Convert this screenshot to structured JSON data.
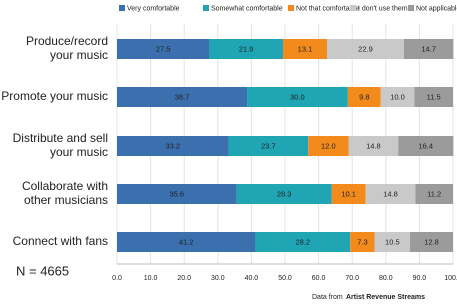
{
  "chart_data": {
    "type": "stacked-bar-horizontal",
    "categories": [
      [
        "Produce/record",
        "your music"
      ],
      [
        "Promote your music"
      ],
      [
        "Distribute and sell",
        "your music"
      ],
      [
        "Collaborate with",
        "other musicians"
      ],
      [
        "Connect with fans"
      ]
    ],
    "series": [
      {
        "name": "Very comfortable",
        "color": "#3b6fad",
        "values": [
          27.5,
          38.7,
          33.2,
          35.6,
          41.2
        ],
        "value_labels": [
          "27.5",
          "38.7",
          "33.2",
          "35.6",
          "41.2"
        ]
      },
      {
        "name": "Somewhat comfortable",
        "color": "#1fa5b3",
        "values": [
          21.9,
          30.0,
          23.7,
          28.3,
          28.2
        ],
        "value_labels": [
          "21.9",
          "30.0",
          "23.7",
          "28.3",
          "28.2"
        ]
      },
      {
        "name": "Not that comfortable",
        "color": "#f28a1c",
        "values": [
          13.1,
          9.8,
          12.0,
          10.1,
          7.3
        ],
        "value_labels": [
          "13.1",
          "9.8",
          "12.0",
          "10.1",
          "7.3"
        ]
      },
      {
        "name": "I don't use them",
        "color": "#c9c9c9",
        "values": [
          22.9,
          10.0,
          14.8,
          14.8,
          10.5
        ],
        "value_labels": [
          "22.9",
          "10.0",
          "14.8",
          "14.8",
          "10.5"
        ]
      },
      {
        "name": "Not applicable",
        "color": "#9b9b9b",
        "values": [
          14.7,
          11.5,
          16.4,
          11.2,
          12.8
        ],
        "value_labels": [
          "14.7",
          "11.5",
          "16.4",
          "11.2",
          "12.8"
        ]
      }
    ],
    "xlim": [
      0,
      100
    ],
    "xticks": [
      {
        "value": 0,
        "label": "0.0"
      },
      {
        "value": 10,
        "label": "10.0"
      },
      {
        "value": 20,
        "label": "20.0"
      },
      {
        "value": 30,
        "label": "30.0"
      },
      {
        "value": 40,
        "label": "40.0"
      },
      {
        "value": 50,
        "label": "50.0"
      },
      {
        "value": 60,
        "label": "60.0"
      },
      {
        "value": 70,
        "label": "70.0"
      },
      {
        "value": 80,
        "label": "80.0"
      },
      {
        "value": 90,
        "label": "90.0"
      },
      {
        "value": 100,
        "label": "100.0"
      }
    ],
    "grid": true,
    "legend": "top",
    "annotations": [
      "N = 4665"
    ],
    "source": [
      "Data from",
      "Artist Revenue Streams"
    ]
  }
}
